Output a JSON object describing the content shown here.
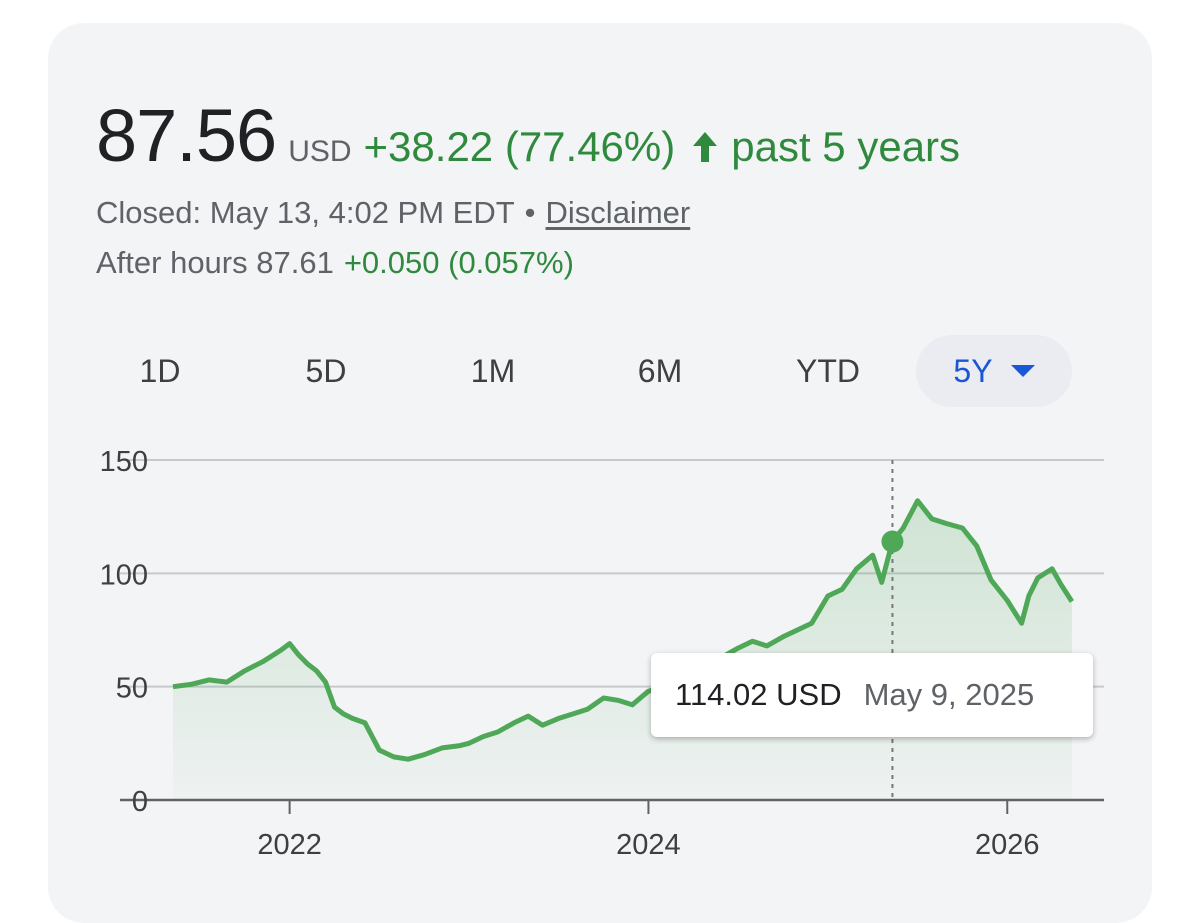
{
  "quote": {
    "price": "87.56",
    "currency": "USD",
    "change": "+38.22 (77.46%)",
    "direction_icon": "arrow-up-icon",
    "period": "past 5 years",
    "closed": "Closed: May 13, 4:02 PM EDT",
    "separator": "•",
    "disclaimer": "Disclaimer",
    "after_hours_label": "After hours 87.61",
    "after_hours_change": "+0.050 (0.057%)"
  },
  "colors": {
    "positive": "#2f8a3e",
    "line": "#4fa857",
    "active_tab": "#1a56d6"
  },
  "tabs": [
    {
      "label": "1D",
      "active": false
    },
    {
      "label": "5D",
      "active": false
    },
    {
      "label": "1M",
      "active": false
    },
    {
      "label": "6M",
      "active": false
    },
    {
      "label": "YTD",
      "active": false
    },
    {
      "label": "5Y",
      "active": true,
      "icon": "caret-down-icon"
    }
  ],
  "tooltip": {
    "value": "114.02 USD",
    "date": "May 9, 2025"
  },
  "chart_data": {
    "type": "area",
    "series": [
      {
        "values": [
          [
            2021.35,
            50
          ],
          [
            2021.45,
            51
          ],
          [
            2021.55,
            53
          ],
          [
            2021.65,
            52
          ],
          [
            2021.75,
            57
          ],
          [
            2021.85,
            61
          ],
          [
            2021.95,
            66
          ],
          [
            2022.0,
            69
          ],
          [
            2022.05,
            64
          ],
          [
            2022.1,
            60
          ],
          [
            2022.15,
            57
          ],
          [
            2022.2,
            52
          ],
          [
            2022.25,
            41
          ],
          [
            2022.3,
            38
          ],
          [
            2022.35,
            36
          ],
          [
            2022.42,
            34
          ],
          [
            2022.5,
            22
          ],
          [
            2022.58,
            19
          ],
          [
            2022.66,
            18
          ],
          [
            2022.75,
            20
          ],
          [
            2022.85,
            23
          ],
          [
            2022.95,
            24
          ],
          [
            2023.0,
            25
          ],
          [
            2023.08,
            28
          ],
          [
            2023.16,
            30
          ],
          [
            2023.25,
            34
          ],
          [
            2023.33,
            37
          ],
          [
            2023.41,
            33
          ],
          [
            2023.5,
            36
          ],
          [
            2023.58,
            38
          ],
          [
            2023.66,
            40
          ],
          [
            2023.75,
            45
          ],
          [
            2023.83,
            44
          ],
          [
            2023.91,
            42
          ],
          [
            2024.0,
            48
          ],
          [
            2024.08,
            50
          ],
          [
            2024.16,
            55
          ],
          [
            2024.25,
            60
          ],
          [
            2024.33,
            62
          ],
          [
            2024.41,
            63
          ],
          [
            2024.5,
            67
          ],
          [
            2024.58,
            70
          ],
          [
            2024.66,
            68
          ],
          [
            2024.75,
            72
          ],
          [
            2024.83,
            75
          ],
          [
            2024.91,
            78
          ],
          [
            2025.0,
            90
          ],
          [
            2025.08,
            93
          ],
          [
            2025.16,
            102
          ],
          [
            2025.25,
            108
          ],
          [
            2025.3,
            96
          ],
          [
            2025.36,
            114.02
          ],
          [
            2025.42,
            120
          ],
          [
            2025.5,
            132
          ],
          [
            2025.58,
            124
          ],
          [
            2025.66,
            122
          ],
          [
            2025.75,
            120
          ],
          [
            2025.83,
            112
          ],
          [
            2025.91,
            97
          ],
          [
            2026.0,
            88
          ],
          [
            2026.08,
            78
          ],
          [
            2026.12,
            90
          ],
          [
            2026.17,
            98
          ],
          [
            2026.25,
            102
          ],
          [
            2026.3,
            95
          ],
          [
            2026.36,
            87.56
          ]
        ]
      }
    ],
    "x_ticks": [
      "2022",
      "2024",
      "2026"
    ],
    "y_ticks": [
      "0",
      "50",
      "100",
      "150"
    ],
    "xlim": [
      2021.35,
      2026.45
    ],
    "ylim": [
      0,
      150
    ],
    "marker": {
      "x": 2025.36,
      "y": 114.02
    },
    "grid": true
  }
}
